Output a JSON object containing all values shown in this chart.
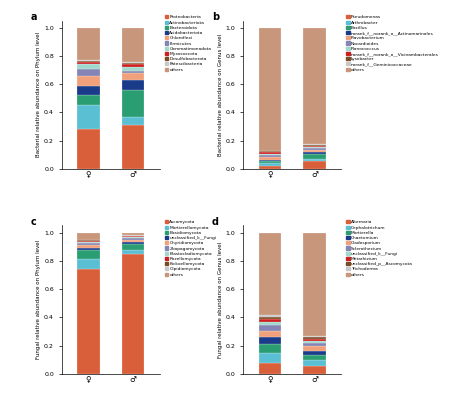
{
  "panel_a": {
    "title": "a",
    "ylabel": "Bacterial relative abundance on Phylum level",
    "categories": [
      "♀",
      "♂"
    ],
    "legend_labels": [
      "Proteobacteria",
      "Actinobacteriota",
      "Bacteroidota",
      "Acidobacteriota",
      "Chloroflexi",
      "Firmicutes",
      "Gemmatimonadota",
      "Myxococcota",
      "Desulfobacterota",
      "Patescibacteria",
      "others"
    ],
    "colors": [
      "#d95f3b",
      "#5bbfd4",
      "#2a9d72",
      "#1a3a8a",
      "#f0a07a",
      "#8585b5",
      "#a0d8cc",
      "#cc2020",
      "#7a4a20",
      "#c8c8c8",
      "#c8967a"
    ],
    "bar1": [
      0.285,
      0.165,
      0.075,
      0.065,
      0.065,
      0.05,
      0.04,
      0.01,
      0.01,
      0.005,
      0.23
    ],
    "bar2": [
      0.315,
      0.05,
      0.195,
      0.07,
      0.05,
      0.015,
      0.03,
      0.015,
      0.01,
      0.005,
      0.245
    ]
  },
  "panel_b": {
    "title": "b",
    "ylabel": "Bacterial relative abundance on Genus level",
    "categories": [
      "♀",
      "♂"
    ],
    "legend_labels": [
      "Pseudomonas",
      "Arthrobacter",
      "Bacillus",
      "norank_f__norank_o__Actinomarinales",
      "Flavobacterium",
      "Nocardioides",
      "Planococccus",
      "norank_f__norank_o__Vicinambacterales",
      "Lysobacter",
      "norank_f__Geminicoccaceae",
      "others"
    ],
    "colors": [
      "#d95f3b",
      "#5bbfd4",
      "#2a9d72",
      "#1a3a8a",
      "#f0a07a",
      "#8585b5",
      "#a0d8cc",
      "#cc2020",
      "#7a4a20",
      "#c8c8c8",
      "#c8967a"
    ],
    "bar1": [
      0.02,
      0.025,
      0.01,
      0.012,
      0.02,
      0.015,
      0.008,
      0.008,
      0.008,
      0.004,
      0.87
    ],
    "bar2": [
      0.055,
      0.018,
      0.035,
      0.012,
      0.018,
      0.012,
      0.008,
      0.008,
      0.005,
      0.004,
      0.825
    ]
  },
  "panel_c": {
    "title": "c",
    "ylabel": "Fungal relative abundance on Phylum level",
    "categories": [
      "♀",
      "♂"
    ],
    "legend_labels": [
      "Ascomycota",
      "Mortierellomycota",
      "Basidiomycota",
      "unclassified_k__Fungi",
      "Chyridiomycota",
      "Zoopagomycota",
      "Blastocladiomycota",
      "Rozellomycota",
      "Kickxellomycota",
      "Olpidiomycota",
      "others"
    ],
    "colors": [
      "#d95f3b",
      "#5bbfd4",
      "#2a9d72",
      "#1a3a8a",
      "#f0a07a",
      "#8585b5",
      "#a0d8cc",
      "#cc2020",
      "#7a4a20",
      "#c8c8c8",
      "#c8967a"
    ],
    "bar1": [
      0.745,
      0.07,
      0.06,
      0.015,
      0.02,
      0.015,
      0.01,
      0.005,
      0.005,
      0.005,
      0.05
    ],
    "bar2": [
      0.845,
      0.035,
      0.04,
      0.015,
      0.015,
      0.01,
      0.008,
      0.005,
      0.005,
      0.005,
      0.017
    ]
  },
  "panel_d": {
    "title": "d",
    "ylabel": "Fungal relative abundance on Genus level",
    "categories": [
      "♀",
      "♂"
    ],
    "legend_labels": [
      "Alternaria",
      "Cephalotrichum",
      "Mortierella",
      "Chaetomium",
      "Cladosporium",
      "Sclerothecium",
      "unclassified_k__Fungi",
      "Metarhizium",
      "unclassified_p__Ascomycota",
      "Trichoderma",
      "others"
    ],
    "colors": [
      "#d95f3b",
      "#5bbfd4",
      "#2a9d72",
      "#1a3a8a",
      "#f0a07a",
      "#8585b5",
      "#a0d8cc",
      "#cc2020",
      "#7a4a20",
      "#c8c8c8",
      "#c8967a"
    ],
    "bar1": [
      0.08,
      0.07,
      0.065,
      0.05,
      0.04,
      0.04,
      0.025,
      0.02,
      0.015,
      0.01,
      0.585
    ],
    "bar2": [
      0.06,
      0.04,
      0.035,
      0.03,
      0.03,
      0.025,
      0.015,
      0.015,
      0.01,
      0.01,
      0.73
    ]
  }
}
